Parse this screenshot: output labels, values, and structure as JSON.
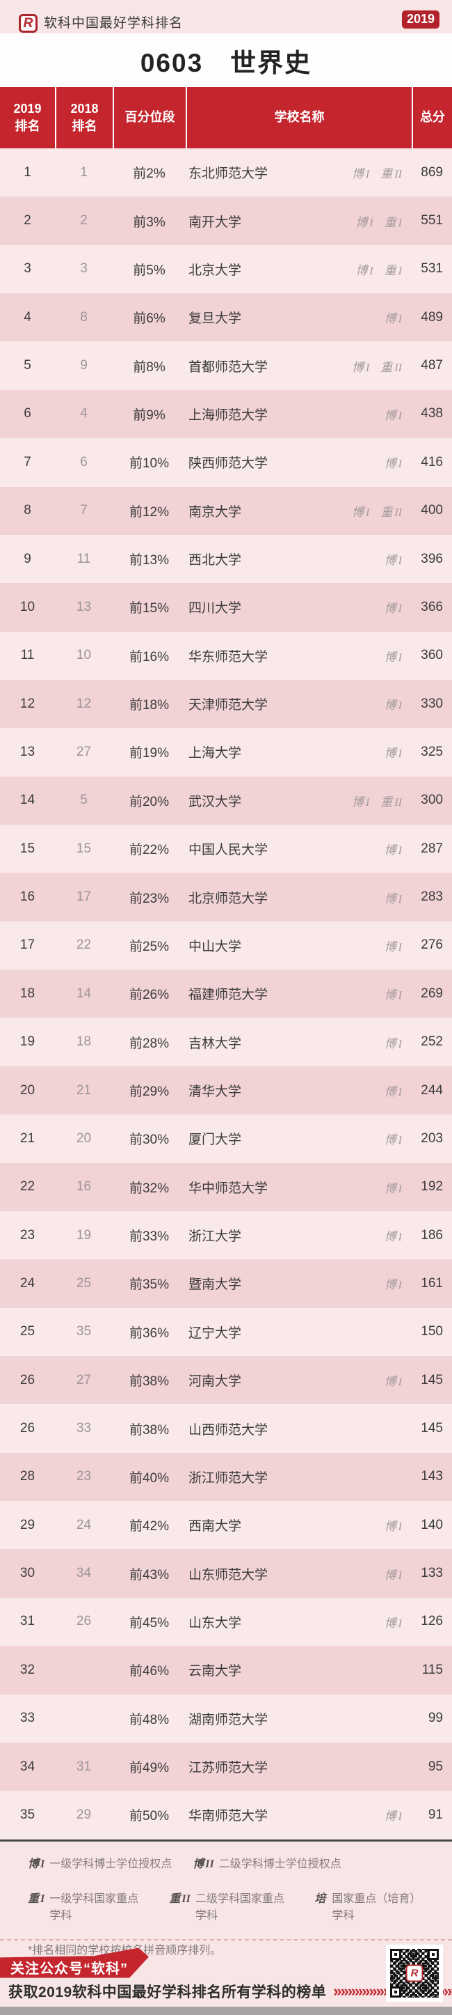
{
  "header": {
    "logo_letter": "R",
    "brand": "软科中国最好学科排名",
    "year_badge": "2019",
    "title": "0603　世界史"
  },
  "table": {
    "headers": [
      {
        "line1": "2019",
        "line2": "排名"
      },
      {
        "line1": "2018",
        "line2": "排名"
      },
      {
        "line1": "百分位段",
        "line2": ""
      },
      {
        "line1": "学校名称",
        "line2": ""
      },
      {
        "line1": "总分",
        "line2": ""
      }
    ],
    "rows": [
      {
        "rank2019": "1",
        "rank2018": "1",
        "percentile": "前2%",
        "school": "东北师范大学",
        "tags": [
          {
            "zh": "博",
            "num": "I"
          },
          {
            "zh": "重",
            "num": "II"
          }
        ],
        "score": "869"
      },
      {
        "rank2019": "2",
        "rank2018": "2",
        "percentile": "前3%",
        "school": "南开大学",
        "tags": [
          {
            "zh": "博",
            "num": "I"
          },
          {
            "zh": "重",
            "num": "I"
          }
        ],
        "score": "551"
      },
      {
        "rank2019": "3",
        "rank2018": "3",
        "percentile": "前5%",
        "school": "北京大学",
        "tags": [
          {
            "zh": "博",
            "num": "I"
          },
          {
            "zh": "重",
            "num": "I"
          }
        ],
        "score": "531"
      },
      {
        "rank2019": "4",
        "rank2018": "8",
        "percentile": "前6%",
        "school": "复旦大学",
        "tags": [
          {
            "zh": "博",
            "num": "I"
          }
        ],
        "score": "489"
      },
      {
        "rank2019": "5",
        "rank2018": "9",
        "percentile": "前8%",
        "school": "首都师范大学",
        "tags": [
          {
            "zh": "博",
            "num": "I"
          },
          {
            "zh": "重",
            "num": "II"
          }
        ],
        "score": "487"
      },
      {
        "rank2019": "6",
        "rank2018": "4",
        "percentile": "前9%",
        "school": "上海师范大学",
        "tags": [
          {
            "zh": "博",
            "num": "I"
          }
        ],
        "score": "438"
      },
      {
        "rank2019": "7",
        "rank2018": "6",
        "percentile": "前10%",
        "school": "陕西师范大学",
        "tags": [
          {
            "zh": "博",
            "num": "I"
          }
        ],
        "score": "416"
      },
      {
        "rank2019": "8",
        "rank2018": "7",
        "percentile": "前12%",
        "school": "南京大学",
        "tags": [
          {
            "zh": "博",
            "num": "I"
          },
          {
            "zh": "重",
            "num": "II"
          }
        ],
        "score": "400"
      },
      {
        "rank2019": "9",
        "rank2018": "11",
        "percentile": "前13%",
        "school": "西北大学",
        "tags": [
          {
            "zh": "博",
            "num": "I"
          }
        ],
        "score": "396"
      },
      {
        "rank2019": "10",
        "rank2018": "13",
        "percentile": "前15%",
        "school": "四川大学",
        "tags": [
          {
            "zh": "博",
            "num": "I"
          }
        ],
        "score": "366"
      },
      {
        "rank2019": "11",
        "rank2018": "10",
        "percentile": "前16%",
        "school": "华东师范大学",
        "tags": [
          {
            "zh": "博",
            "num": "I"
          }
        ],
        "score": "360"
      },
      {
        "rank2019": "12",
        "rank2018": "12",
        "percentile": "前18%",
        "school": "天津师范大学",
        "tags": [
          {
            "zh": "博",
            "num": "I"
          }
        ],
        "score": "330"
      },
      {
        "rank2019": "13",
        "rank2018": "27",
        "percentile": "前19%",
        "school": "上海大学",
        "tags": [
          {
            "zh": "博",
            "num": "I"
          }
        ],
        "score": "325"
      },
      {
        "rank2019": "14",
        "rank2018": "5",
        "percentile": "前20%",
        "school": "武汉大学",
        "tags": [
          {
            "zh": "博",
            "num": "I"
          },
          {
            "zh": "重",
            "num": "II"
          }
        ],
        "score": "300"
      },
      {
        "rank2019": "15",
        "rank2018": "15",
        "percentile": "前22%",
        "school": "中国人民大学",
        "tags": [
          {
            "zh": "博",
            "num": "I"
          }
        ],
        "score": "287"
      },
      {
        "rank2019": "16",
        "rank2018": "17",
        "percentile": "前23%",
        "school": "北京师范大学",
        "tags": [
          {
            "zh": "博",
            "num": "I"
          }
        ],
        "score": "283"
      },
      {
        "rank2019": "17",
        "rank2018": "22",
        "percentile": "前25%",
        "school": "中山大学",
        "tags": [
          {
            "zh": "博",
            "num": "I"
          }
        ],
        "score": "276"
      },
      {
        "rank2019": "18",
        "rank2018": "14",
        "percentile": "前26%",
        "school": "福建师范大学",
        "tags": [
          {
            "zh": "博",
            "num": "I"
          }
        ],
        "score": "269"
      },
      {
        "rank2019": "19",
        "rank2018": "18",
        "percentile": "前28%",
        "school": "吉林大学",
        "tags": [
          {
            "zh": "博",
            "num": "I"
          }
        ],
        "score": "252"
      },
      {
        "rank2019": "20",
        "rank2018": "21",
        "percentile": "前29%",
        "school": "清华大学",
        "tags": [
          {
            "zh": "博",
            "num": "I"
          }
        ],
        "score": "244"
      },
      {
        "rank2019": "21",
        "rank2018": "20",
        "percentile": "前30%",
        "school": "厦门大学",
        "tags": [
          {
            "zh": "博",
            "num": "I"
          }
        ],
        "score": "203"
      },
      {
        "rank2019": "22",
        "rank2018": "16",
        "percentile": "前32%",
        "school": "华中师范大学",
        "tags": [
          {
            "zh": "博",
            "num": "I"
          }
        ],
        "score": "192"
      },
      {
        "rank2019": "23",
        "rank2018": "19",
        "percentile": "前33%",
        "school": "浙江大学",
        "tags": [
          {
            "zh": "博",
            "num": "I"
          }
        ],
        "score": "186"
      },
      {
        "rank2019": "24",
        "rank2018": "25",
        "percentile": "前35%",
        "school": "暨南大学",
        "tags": [
          {
            "zh": "博",
            "num": "I"
          }
        ],
        "score": "161"
      },
      {
        "rank2019": "25",
        "rank2018": "35",
        "percentile": "前36%",
        "school": "辽宁大学",
        "tags": [],
        "score": "150"
      },
      {
        "rank2019": "26",
        "rank2018": "27",
        "percentile": "前38%",
        "school": "河南大学",
        "tags": [
          {
            "zh": "博",
            "num": "I"
          }
        ],
        "score": "145"
      },
      {
        "rank2019": "26",
        "rank2018": "33",
        "percentile": "前38%",
        "school": "山西师范大学",
        "tags": [],
        "score": "145"
      },
      {
        "rank2019": "28",
        "rank2018": "23",
        "percentile": "前40%",
        "school": "浙江师范大学",
        "tags": [],
        "score": "143"
      },
      {
        "rank2019": "29",
        "rank2018": "24",
        "percentile": "前42%",
        "school": "西南大学",
        "tags": [
          {
            "zh": "博",
            "num": "I"
          }
        ],
        "score": "140"
      },
      {
        "rank2019": "30",
        "rank2018": "34",
        "percentile": "前43%",
        "school": "山东师范大学",
        "tags": [
          {
            "zh": "博",
            "num": "I"
          }
        ],
        "score": "133"
      },
      {
        "rank2019": "31",
        "rank2018": "26",
        "percentile": "前45%",
        "school": "山东大学",
        "tags": [
          {
            "zh": "博",
            "num": "I"
          }
        ],
        "score": "126"
      },
      {
        "rank2019": "32",
        "rank2018": "",
        "percentile": "前46%",
        "school": "云南大学",
        "tags": [],
        "score": "115"
      },
      {
        "rank2019": "33",
        "rank2018": "",
        "percentile": "前48%",
        "school": "湖南师范大学",
        "tags": [],
        "score": "99"
      },
      {
        "rank2019": "34",
        "rank2018": "31",
        "percentile": "前49%",
        "school": "江苏师范大学",
        "tags": [],
        "score": "95"
      },
      {
        "rank2019": "35",
        "rank2018": "29",
        "percentile": "前50%",
        "school": "华南师范大学",
        "tags": [
          {
            "zh": "博",
            "num": "I"
          }
        ],
        "score": "91"
      }
    ]
  },
  "legend": {
    "items_line1": [
      {
        "zh": "博",
        "num": "I",
        "desc": "一级学科博士学位授权点"
      },
      {
        "zh": "博",
        "num": "II",
        "desc": "二级学科博士学位授权点"
      }
    ],
    "items_line2": [
      {
        "zh": "重",
        "num": "I",
        "desc": "一级学科国家重点学科"
      },
      {
        "zh": "重",
        "num": "II",
        "desc": "二级学科国家重点学科"
      },
      {
        "zh": "培",
        "num": "",
        "desc": "国家重点（培育）学科"
      }
    ],
    "note": "*排名相同的学校按校名拼音顺序排列。"
  },
  "footer": {
    "banner_text": "关注公众号“软科”",
    "cta_text": "获取2019软科中国最好学科排名所有学科的榜单",
    "chevrons": "»»»»»»»»»»»»»»»»»",
    "qr_center_letter": "R"
  },
  "colors": {
    "header_red": "#c5262e",
    "badge_red": "#b2222a",
    "row_light": "#f9e9ea",
    "row_dark": "#f1d2d5",
    "page_pink": "#f8e6e7",
    "tag_gray": "#a49b9c",
    "strip_gray": "#a8a2a3"
  }
}
